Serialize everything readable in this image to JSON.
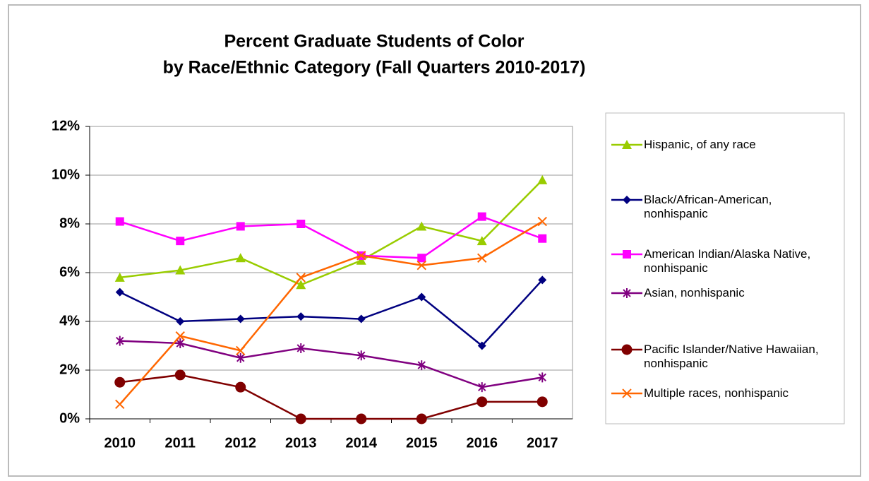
{
  "chart_data": {
    "type": "line",
    "title": [
      "Percent Graduate Students of Color",
      "by Race/Ethnic Category (Fall Quarters 2010-2017)"
    ],
    "categories": [
      "2010",
      "2011",
      "2012",
      "2013",
      "2014",
      "2015",
      "2016",
      "2017"
    ],
    "ylim": [
      0,
      12
    ],
    "yticks": [
      {
        "value": 0,
        "label": "0%"
      },
      {
        "value": 2,
        "label": "2%"
      },
      {
        "value": 4,
        "label": "4%"
      },
      {
        "value": 6,
        "label": "6%"
      },
      {
        "value": 8,
        "label": "8%"
      },
      {
        "value": 10,
        "label": "10%"
      },
      {
        "value": 12,
        "label": "12%"
      }
    ],
    "grid": true,
    "legend": "right",
    "series": [
      {
        "name": "Hispanic, of any race",
        "color": "#99cc00",
        "marker": "triangle",
        "values": [
          5.8,
          6.1,
          6.6,
          5.5,
          6.5,
          7.9,
          7.3,
          9.8
        ]
      },
      {
        "name": "Black/African-American, nonhispanic",
        "color": "#000080",
        "marker": "diamond",
        "values": [
          5.2,
          4.0,
          4.1,
          4.2,
          4.1,
          5.0,
          3.0,
          5.7
        ]
      },
      {
        "name": "American Indian/Alaska Native, nonhispanic",
        "color": "#ff00ff",
        "marker": "square",
        "values": [
          8.1,
          7.3,
          7.9,
          8.0,
          6.7,
          6.6,
          8.3,
          7.4
        ]
      },
      {
        "name": "Asian, nonhispanic",
        "color": "#800080",
        "marker": "asterisk",
        "values": [
          3.2,
          3.1,
          2.5,
          2.9,
          2.6,
          2.2,
          1.3,
          1.7
        ]
      },
      {
        "name": "Pacific Islander/Native Hawaiian, nonhispanic",
        "color": "#800000",
        "marker": "circle",
        "values": [
          1.5,
          1.8,
          1.3,
          0,
          0,
          0,
          0.7,
          0.7
        ]
      },
      {
        "name": "Multiple races, nonhispanic",
        "color": "#ff6600",
        "marker": "x",
        "values": [
          0.6,
          3.4,
          2.8,
          5.8,
          6.7,
          6.3,
          6.6,
          8.1
        ]
      }
    ]
  }
}
